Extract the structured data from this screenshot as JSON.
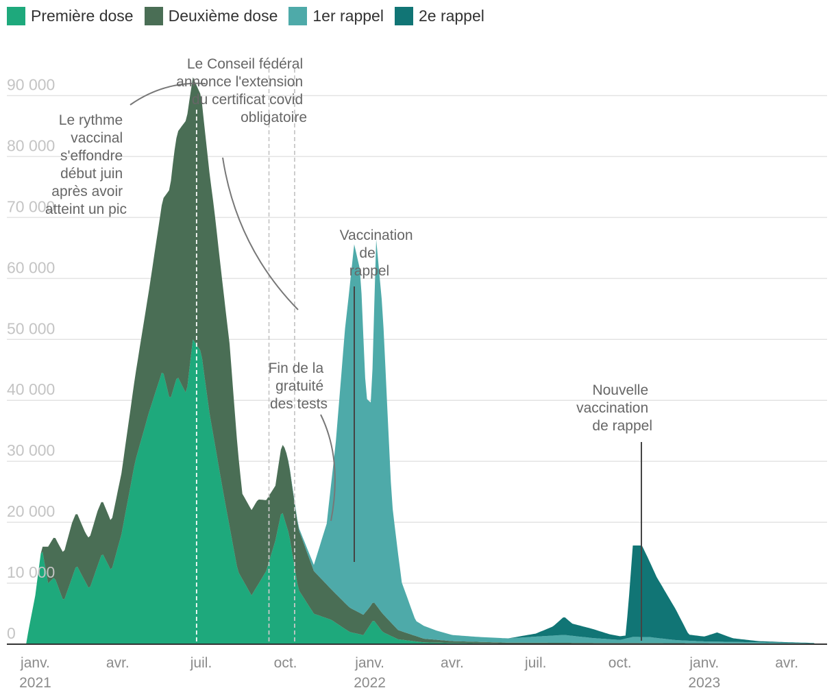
{
  "legend": [
    {
      "label": "Première dose",
      "color": "#1ea97c"
    },
    {
      "label": "Deuxième dose",
      "color": "#4a6e55"
    },
    {
      "label": "1er rappel",
      "color": "#4eaaa9"
    },
    {
      "label": "2e rappel",
      "color": "#117575"
    }
  ],
  "chart_data": {
    "type": "area",
    "stacked": true,
    "ylim": [
      0,
      95000
    ],
    "yticks": [
      0,
      10000,
      20000,
      30000,
      40000,
      50000,
      60000,
      70000,
      80000,
      90000
    ],
    "ytick_labels": [
      "0",
      "10 000",
      "20 000",
      "30 000",
      "40 000",
      "50 000",
      "60 000",
      "70 000",
      "80 000",
      "90 000"
    ],
    "xlim": [
      "2020-12-01",
      "2023-05-15"
    ],
    "xticks": [
      {
        "date": "2021-01-01",
        "label": "janv.",
        "year": "2021"
      },
      {
        "date": "2021-04-01",
        "label": "avr.",
        "year": ""
      },
      {
        "date": "2021-07-01",
        "label": "juil.",
        "year": ""
      },
      {
        "date": "2021-10-01",
        "label": "oct.",
        "year": ""
      },
      {
        "date": "2022-01-01",
        "label": "janv.",
        "year": "2022"
      },
      {
        "date": "2022-04-01",
        "label": "avr.",
        "year": ""
      },
      {
        "date": "2022-07-01",
        "label": "juil.",
        "year": ""
      },
      {
        "date": "2022-10-01",
        "label": "oct.",
        "year": ""
      },
      {
        "date": "2023-01-01",
        "label": "janv.",
        "year": "2023"
      },
      {
        "date": "2023-04-01",
        "label": "avr.",
        "year": ""
      }
    ],
    "series": [
      {
        "name": "Première dose",
        "color": "#1ea97c",
        "points": [
          [
            "2020-12-22",
            0
          ],
          [
            "2020-12-23",
            1000
          ],
          [
            "2021-01-01",
            8000
          ],
          [
            "2021-01-08",
            16000
          ],
          [
            "2021-01-15",
            10000
          ],
          [
            "2021-01-22",
            11000
          ],
          [
            "2021-02-01",
            7000
          ],
          [
            "2021-02-15",
            13000
          ],
          [
            "2021-03-01",
            9000
          ],
          [
            "2021-03-15",
            15000
          ],
          [
            "2021-03-25",
            12000
          ],
          [
            "2021-04-05",
            18000
          ],
          [
            "2021-04-20",
            30000
          ],
          [
            "2021-05-05",
            38000
          ],
          [
            "2021-05-20",
            45000
          ],
          [
            "2021-05-28",
            40000
          ],
          [
            "2021-06-05",
            44000
          ],
          [
            "2021-06-15",
            41000
          ],
          [
            "2021-06-22",
            50000
          ],
          [
            "2021-07-01",
            48000
          ],
          [
            "2021-07-10",
            38000
          ],
          [
            "2021-07-25",
            25000
          ],
          [
            "2021-08-10",
            12000
          ],
          [
            "2021-08-25",
            8000
          ],
          [
            "2021-09-10",
            12000
          ],
          [
            "2021-09-20",
            17000
          ],
          [
            "2021-09-27",
            22000
          ],
          [
            "2021-10-05",
            18000
          ],
          [
            "2021-10-15",
            9000
          ],
          [
            "2021-11-01",
            5000
          ],
          [
            "2021-11-20",
            4000
          ],
          [
            "2021-12-10",
            2000
          ],
          [
            "2021-12-25",
            1500
          ],
          [
            "2022-01-05",
            4000
          ],
          [
            "2022-01-15",
            2000
          ],
          [
            "2022-02-01",
            800
          ],
          [
            "2022-03-01",
            300
          ],
          [
            "2022-04-01",
            200
          ],
          [
            "2022-06-01",
            100
          ],
          [
            "2023-05-01",
            50
          ]
        ]
      },
      {
        "name": "Deuxième dose",
        "color": "#4a6e55",
        "points": [
          [
            "2020-12-22",
            0
          ],
          [
            "2021-01-01",
            0
          ],
          [
            "2021-01-08",
            0
          ],
          [
            "2021-01-15",
            6000
          ],
          [
            "2021-01-25",
            7000
          ],
          [
            "2021-02-10",
            9000
          ],
          [
            "2021-02-25",
            8000
          ],
          [
            "2021-03-10",
            9000
          ],
          [
            "2021-03-25",
            8000
          ],
          [
            "2021-04-05",
            10000
          ],
          [
            "2021-04-20",
            14000
          ],
          [
            "2021-05-05",
            20000
          ],
          [
            "2021-05-20",
            28000
          ],
          [
            "2021-06-01",
            38000
          ],
          [
            "2021-06-15",
            45000
          ],
          [
            "2021-06-22",
            43000
          ],
          [
            "2021-07-01",
            42000
          ],
          [
            "2021-07-15",
            38000
          ],
          [
            "2021-08-01",
            30000
          ],
          [
            "2021-08-15",
            14000
          ],
          [
            "2021-09-01",
            14000
          ],
          [
            "2021-09-20",
            9000
          ],
          [
            "2021-10-01",
            12000
          ],
          [
            "2021-10-15",
            10000
          ],
          [
            "2021-11-01",
            7000
          ],
          [
            "2021-11-20",
            5000
          ],
          [
            "2021-12-10",
            4000
          ],
          [
            "2022-01-01",
            3000
          ],
          [
            "2022-01-15",
            3000
          ],
          [
            "2022-02-01",
            1500
          ],
          [
            "2022-03-01",
            600
          ],
          [
            "2022-04-01",
            300
          ],
          [
            "2022-06-01",
            150
          ],
          [
            "2023-05-01",
            50
          ]
        ]
      },
      {
        "name": "1er rappel",
        "color": "#4eaaa9",
        "points": [
          [
            "2020-12-22",
            0
          ],
          [
            "2021-10-01",
            0
          ],
          [
            "2021-10-20",
            500
          ],
          [
            "2021-11-01",
            1000
          ],
          [
            "2021-11-15",
            10000
          ],
          [
            "2021-11-25",
            25000
          ],
          [
            "2021-12-05",
            45000
          ],
          [
            "2021-12-15",
            60000
          ],
          [
            "2021-12-22",
            56000
          ],
          [
            "2021-12-28",
            35000
          ],
          [
            "2022-01-03",
            33000
          ],
          [
            "2022-01-08",
            60000
          ],
          [
            "2022-01-15",
            50000
          ],
          [
            "2022-01-25",
            20000
          ],
          [
            "2022-02-05",
            8000
          ],
          [
            "2022-02-20",
            2500
          ],
          [
            "2022-03-15",
            1500
          ],
          [
            "2022-04-01",
            1000
          ],
          [
            "2022-05-01",
            800
          ],
          [
            "2022-06-01",
            700
          ],
          [
            "2022-07-01",
            1000
          ],
          [
            "2022-08-01",
            1300
          ],
          [
            "2022-09-01",
            800
          ],
          [
            "2022-10-01",
            500
          ],
          [
            "2022-10-15",
            1000
          ],
          [
            "2022-11-01",
            1000
          ],
          [
            "2022-12-01",
            500
          ],
          [
            "2023-01-01",
            300
          ],
          [
            "2023-05-01",
            50
          ]
        ]
      },
      {
        "name": "2e rappel",
        "color": "#117575",
        "points": [
          [
            "2020-12-22",
            0
          ],
          [
            "2022-06-01",
            0
          ],
          [
            "2022-07-01",
            500
          ],
          [
            "2022-07-20",
            1500
          ],
          [
            "2022-08-01",
            3000
          ],
          [
            "2022-08-10",
            2000
          ],
          [
            "2022-09-01",
            1500
          ],
          [
            "2022-09-20",
            800
          ],
          [
            "2022-10-07",
            500
          ],
          [
            "2022-10-10",
            5000
          ],
          [
            "2022-10-15",
            15000
          ],
          [
            "2022-10-25",
            15000
          ],
          [
            "2022-11-10",
            10000
          ],
          [
            "2022-12-01",
            5000
          ],
          [
            "2022-12-15",
            1000
          ],
          [
            "2023-01-01",
            800
          ],
          [
            "2023-01-15",
            1500
          ],
          [
            "2023-02-01",
            600
          ],
          [
            "2023-03-01",
            200
          ],
          [
            "2023-04-01",
            100
          ],
          [
            "2023-05-01",
            50
          ]
        ]
      }
    ],
    "annotations": [
      {
        "text": "Le rythme vaccinal s'effondre début juin après avoir atteint un pic"
      },
      {
        "text": "Le Conseil fédéral annonce l'extension du certificat covid obligatoire"
      },
      {
        "text": "Fin de la gratuité des tests"
      },
      {
        "text": "Vaccination de rappel"
      },
      {
        "text": "Nouvelle vaccination de rappel"
      }
    ]
  }
}
